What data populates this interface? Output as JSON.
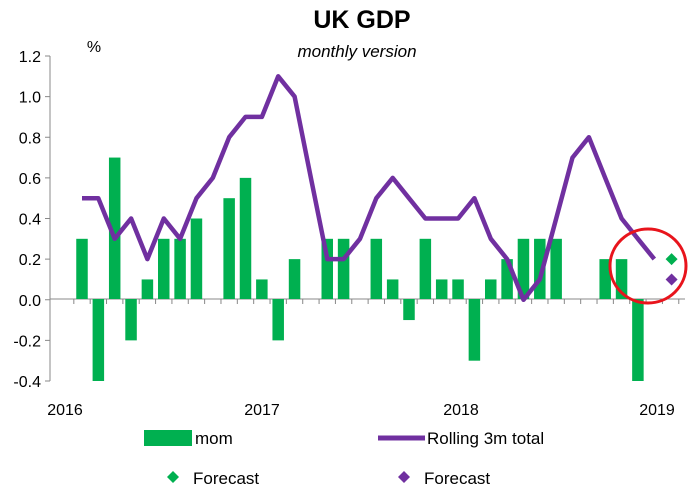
{
  "chart_data": {
    "type": "bar",
    "title": "UK GDP",
    "subtitle": "monthly version",
    "ylabel": "%",
    "xlabel": "",
    "ylim": [
      -0.4,
      1.2
    ],
    "yticks": [
      "1.2",
      "1.0",
      "0.8",
      "0.6",
      "0.4",
      "0.2",
      "0.0",
      "-0.2",
      "-0.4"
    ],
    "xticks": [
      "2016",
      "2017",
      "2018",
      "2019"
    ],
    "grid": false,
    "x_start": "2016-01",
    "series": [
      {
        "name": "mom",
        "kind": "bar",
        "color": "#00b050",
        "values": [
          0.3,
          -0.4,
          0.7,
          -0.2,
          0.1,
          0.3,
          0.3,
          0.4,
          null,
          0.5,
          0.6,
          0.1,
          -0.2,
          0.2,
          null,
          0.3,
          0.3,
          null,
          0.3,
          0.1,
          -0.1,
          0.3,
          0.1,
          0.1,
          -0.3,
          0.1,
          0.2,
          0.3,
          0.3,
          0.3,
          null,
          null,
          0.2,
          0.2,
          -0.4
        ]
      },
      {
        "name": "Rolling 3m total",
        "kind": "line",
        "color": "#7030a0",
        "values": [
          0.5,
          0.5,
          0.3,
          0.4,
          0.2,
          0.4,
          0.3,
          0.5,
          0.6,
          0.8,
          0.9,
          0.9,
          1.1,
          1.0,
          0.6,
          0.2,
          0.2,
          0.3,
          0.5,
          0.6,
          0.5,
          0.4,
          0.4,
          0.4,
          0.5,
          0.3,
          0.2,
          0.0,
          0.1,
          0.4,
          0.7,
          0.8,
          0.6,
          0.4,
          0.3,
          0.2
        ]
      }
    ],
    "forecasts": [
      {
        "name": "Forecast",
        "series": "mom",
        "color": "#00b050",
        "x": "2019-01",
        "value": 0.2
      },
      {
        "name": "Forecast",
        "series": "Rolling 3m total",
        "color": "#7030a0",
        "x": "2019-01",
        "value": 0.1
      }
    ],
    "annotation": {
      "shape": "circle",
      "color": "#e8141c"
    },
    "legend": {
      "position": "bottom",
      "entries": [
        "mom",
        "Rolling 3m total",
        "Forecast",
        "Forecast"
      ]
    }
  }
}
